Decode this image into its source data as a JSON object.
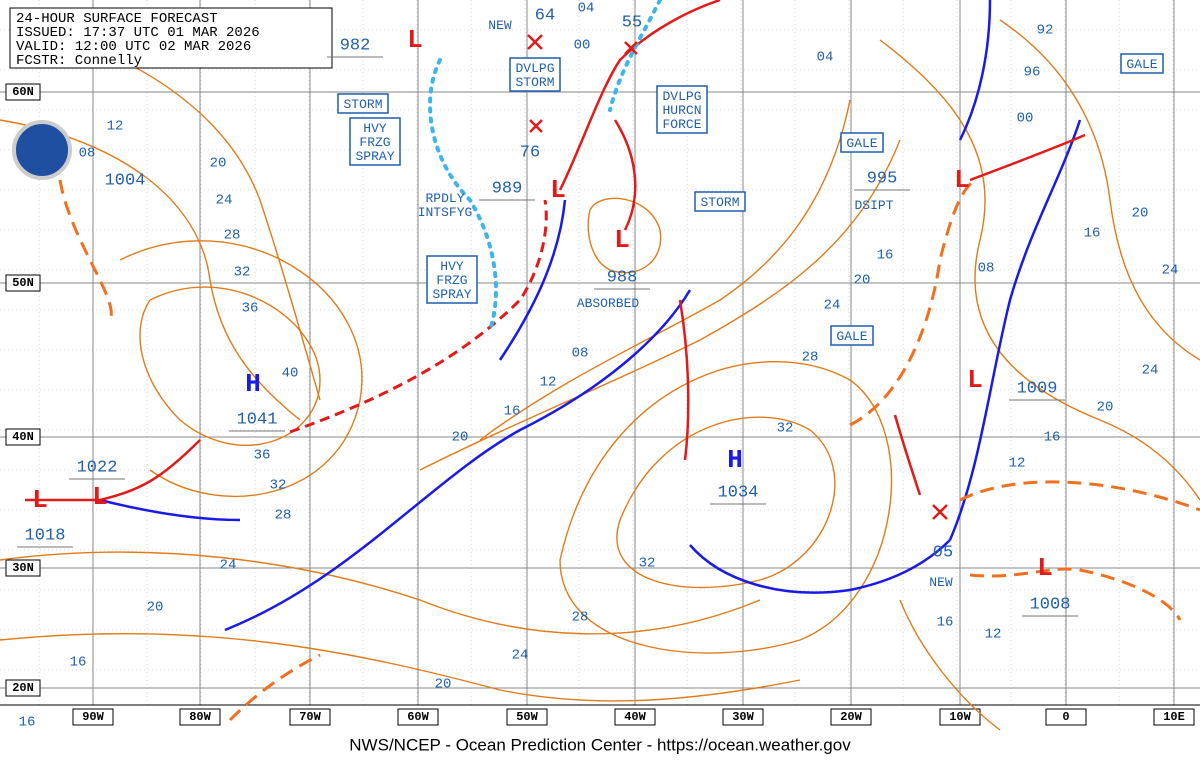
{
  "header": [
    "24-HOUR SURFACE FORECAST",
    "ISSUED: 17:37 UTC 01 MAR 2026",
    "VALID:  12:00 UTC 02 MAR 2026",
    "FCSTR:  Connelly"
  ],
  "lat_labels": [
    "60N",
    "50N",
    "40N",
    "30N",
    "20N"
  ],
  "lon_labels": [
    "90W",
    "80W",
    "70W",
    "60W",
    "50W",
    "40W",
    "30W",
    "20W",
    "10W",
    "0",
    "10E"
  ],
  "systems": [
    {
      "symbol": "L",
      "pressure": "982"
    },
    {
      "symbol": "L",
      "pressure": "989"
    },
    {
      "symbol": "L",
      "pressure": "988"
    },
    {
      "symbol": "L",
      "pressure": "995"
    },
    {
      "symbol": "L",
      "pressure": "1009"
    },
    {
      "symbol": "L",
      "pressure": "1018"
    },
    {
      "symbol": "L",
      "pressure": "1022"
    },
    {
      "symbol": "L",
      "pressure": "1008"
    },
    {
      "symbol": "H",
      "pressure": "1041"
    },
    {
      "symbol": "H",
      "pressure": "1034"
    }
  ],
  "other_pressures": [
    "1004",
    "64",
    "55",
    "76",
    "05"
  ],
  "warnings": [
    {
      "lines": [
        "STORM"
      ]
    },
    {
      "lines": [
        "HVY",
        "FRZG",
        "SPRAY"
      ]
    },
    {
      "lines": [
        "RPDLY",
        "INTSFYG"
      ]
    },
    {
      "lines": [
        "HVY",
        "FRZG",
        "SPRAY"
      ]
    },
    {
      "lines": [
        "NEW"
      ]
    },
    {
      "lines": [
        "DVLPG",
        "STORM"
      ]
    },
    {
      "lines": [
        "DVLPG",
        "HURCN",
        "FORCE"
      ]
    },
    {
      "lines": [
        "STORM"
      ]
    },
    {
      "lines": [
        "ABSORBED"
      ]
    },
    {
      "lines": [
        "GALE"
      ]
    },
    {
      "lines": [
        "DSIPT"
      ]
    },
    {
      "lines": [
        "GALE"
      ]
    },
    {
      "lines": [
        "GALE"
      ]
    },
    {
      "lines": [
        "NEW"
      ]
    }
  ],
  "isobar_labels": [
    "12",
    "08",
    "20",
    "24",
    "28",
    "32",
    "36",
    "40",
    "36",
    "32",
    "28",
    "24",
    "20",
    "16",
    "16",
    "20",
    "24",
    "28",
    "32",
    "20",
    "16",
    "12",
    "08",
    "32",
    "28",
    "24",
    "20",
    "16",
    "04",
    "00",
    "04",
    "92",
    "96",
    "00",
    "08",
    "16",
    "20",
    "24",
    "24",
    "20",
    "16",
    "12",
    "16",
    "12"
  ],
  "footer": "NWS/NCEP - Ocean Prediction Center - https://ocean.weather.gov"
}
